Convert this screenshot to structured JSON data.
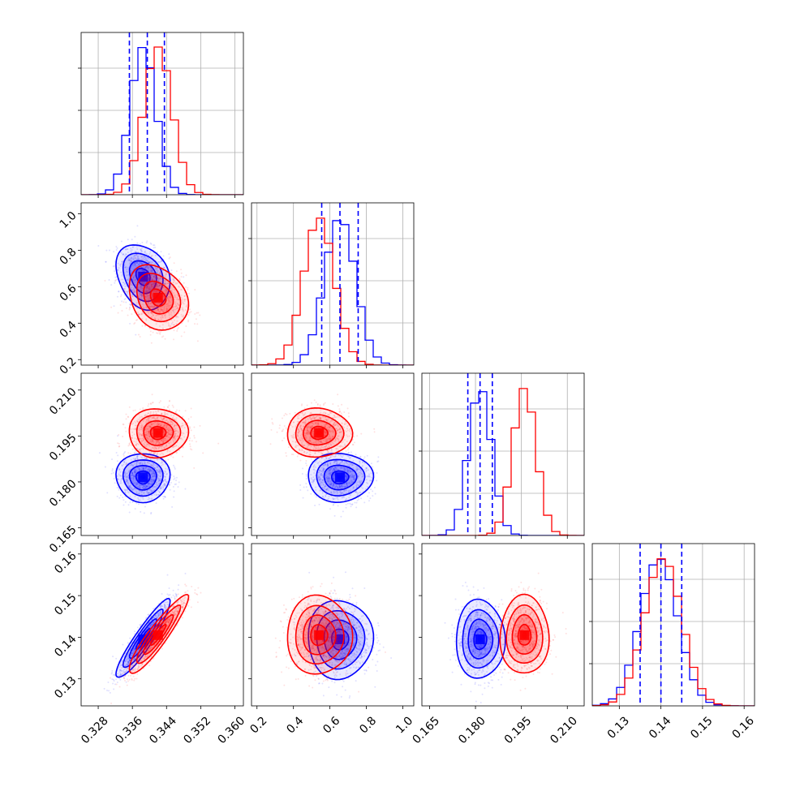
{
  "chart_data": {
    "type": "corner",
    "parameters": [
      {
        "range": [
          0.324,
          0.362
        ],
        "ticks": [
          "0.328",
          "0.336",
          "0.344",
          "0.352",
          "0.360"
        ],
        "tick_values": [
          0.328,
          0.336,
          0.344,
          0.352,
          0.36
        ]
      },
      {
        "range": [
          0.17,
          1.06
        ],
        "ticks": [
          "0.2",
          "0.4",
          "0.6",
          "0.8",
          "1.0"
        ],
        "tick_values": [
          0.2,
          0.4,
          0.6,
          0.8,
          1.0
        ]
      },
      {
        "range": [
          0.1625,
          0.2155
        ],
        "ticks": [
          "0.165",
          "0.180",
          "0.195",
          "0.210"
        ],
        "tick_values": [
          0.165,
          0.18,
          0.195,
          0.21
        ]
      },
      {
        "range": [
          0.1235,
          0.1625
        ],
        "ticks": [
          "0.13",
          "0.14",
          "0.15",
          "0.16"
        ],
        "tick_values": [
          0.13,
          0.14,
          0.15,
          0.16
        ]
      }
    ],
    "series": [
      {
        "color": "#0000ff",
        "mean": [
          0.3385,
          0.655,
          0.1815,
          0.1395
        ],
        "sd": [
          0.003,
          0.085,
          0.0038,
          0.0045
        ],
        "quantiles_shown": true,
        "quantiles": [
          [
            0.3353,
            0.3395,
            0.3435
          ],
          [
            0.555,
            0.655,
            0.755
          ],
          [
            0.1775,
            0.1815,
            0.1855
          ],
          [
            0.135,
            0.14,
            0.145
          ]
        ]
      },
      {
        "color": "#ff0000",
        "mean": [
          0.342,
          0.54,
          0.196,
          0.1405
        ],
        "sd": [
          0.0033,
          0.085,
          0.0038,
          0.0045
        ]
      }
    ],
    "correlations": [
      [
        0,
        3,
        0.92
      ],
      [
        0,
        1,
        -0.25
      ]
    ],
    "grid": true,
    "histogram_style": "step"
  }
}
